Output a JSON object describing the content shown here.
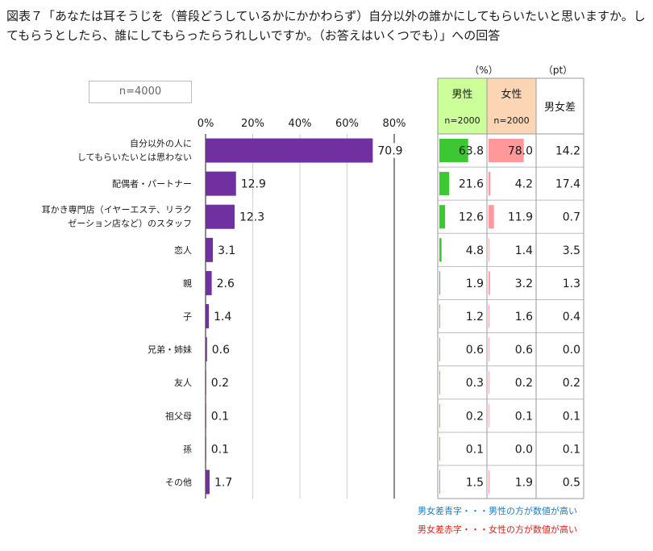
{
  "title": "図表７「あなたは耳そうじを（普段どうしているかにかかわらず）自分以外の誰かにしてもらいたいと思いますか。してもらうとしたら、誰にしてもらったらうれしいですか。（お答えはいくつでも）」への回答",
  "sample_label": "n=4000",
  "units": {
    "percent": "（%）",
    "pt": "（pt）"
  },
  "table_headers": {
    "male": "男性",
    "male_n": "n=2000",
    "female": "女性",
    "female_n": "n=2000",
    "diff": "男女差"
  },
  "notes": {
    "blue": "男女差青字・・・男性の方が数値が高い",
    "red": "男女差赤字・・・女性の方が数値が高い"
  },
  "colors": {
    "bar": "#7030a0",
    "male_bar": "#3cc832",
    "female_bar": "#ff9999",
    "male_header": "#ccff99",
    "female_header": "#fcd5b4",
    "diff_blue": "#1f7ac2",
    "diff_red": "#e0201b"
  },
  "chart_data": {
    "type": "bar",
    "orientation": "horizontal",
    "xlim": [
      0,
      80
    ],
    "xticks": [
      "0%",
      "20%",
      "40%",
      "60%",
      "80%"
    ],
    "categories": [
      [
        "自分以外の人に",
        "してもらいたいとは思わない"
      ],
      [
        "配偶者・パートナー"
      ],
      [
        "耳かき専門店（イヤーエステ、リラク",
        "ゼーション店など）のスタッフ"
      ],
      [
        "恋人"
      ],
      [
        "親"
      ],
      [
        "子"
      ],
      [
        "兄弟・姉妹"
      ],
      [
        "友人"
      ],
      [
        "祖父母"
      ],
      [
        "孫"
      ],
      [
        "その他"
      ]
    ],
    "values": [
      70.9,
      12.9,
      12.3,
      3.1,
      2.6,
      1.4,
      0.6,
      0.2,
      0.1,
      0.1,
      1.7
    ],
    "value_labels": [
      "70.9",
      "12.9",
      "12.3",
      "3.1",
      "2.6",
      "1.4",
      "0.6",
      "0.2",
      "0.1",
      "0.1",
      "1.7"
    ],
    "male": [
      63.8,
      21.6,
      12.6,
      4.8,
      1.9,
      1.2,
      0.6,
      0.3,
      0.2,
      0.1,
      1.5
    ],
    "male_labels": [
      "63.8",
      "21.6",
      "12.6",
      "4.8",
      "1.9",
      "1.2",
      "0.6",
      "0.3",
      "0.2",
      "0.1",
      "1.5"
    ],
    "female": [
      78.0,
      4.2,
      11.9,
      1.4,
      3.2,
      1.6,
      0.6,
      0.2,
      0.1,
      0.0,
      1.9
    ],
    "female_labels": [
      "78.0",
      "4.2",
      "11.9",
      "1.4",
      "3.2",
      "1.6",
      "0.6",
      "0.2",
      "0.1",
      "0.0",
      "1.9"
    ],
    "diff_labels": [
      "14.2",
      "17.4",
      "0.7",
      "3.5",
      "1.3",
      "0.4",
      "0.0",
      "0.2",
      "0.1",
      "0.1",
      "0.5"
    ],
    "diff_color": [
      "red",
      "blue",
      "blue",
      "blue",
      "red",
      "red",
      "blue",
      "blue",
      "blue",
      "blue",
      "red"
    ]
  }
}
